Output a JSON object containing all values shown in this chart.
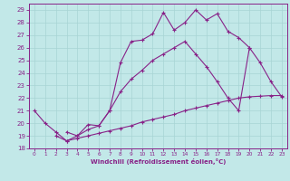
{
  "xlabel": "Windchill (Refroidissement éolien,°C)",
  "xlim": [
    -0.5,
    23.5
  ],
  "ylim": [
    18,
    29.5
  ],
  "yticks": [
    18,
    19,
    20,
    21,
    22,
    23,
    24,
    25,
    26,
    27,
    28,
    29
  ],
  "xticks": [
    0,
    1,
    2,
    3,
    4,
    5,
    6,
    7,
    8,
    9,
    10,
    11,
    12,
    13,
    14,
    15,
    16,
    17,
    18,
    19,
    20,
    21,
    22,
    23
  ],
  "bg_color": "#c2e8e8",
  "grid_color": "#a8d4d4",
  "line_color": "#882288",
  "series": [
    {
      "x": [
        0,
        1,
        2,
        3,
        4,
        5,
        6,
        7,
        8,
        9,
        10,
        11,
        12,
        13,
        14,
        15,
        16,
        17,
        18,
        19,
        20
      ],
      "y": [
        21.0,
        20.0,
        19.3,
        18.6,
        19.0,
        19.9,
        19.8,
        21.0,
        24.8,
        26.5,
        26.6,
        27.1,
        28.8,
        27.4,
        28.0,
        29.0,
        28.2,
        28.7,
        27.3,
        26.8,
        26.0
      ]
    },
    {
      "x": [
        3,
        4,
        5,
        6,
        7,
        8,
        9,
        10,
        11,
        12,
        13,
        14,
        15,
        16,
        17,
        18,
        19,
        20,
        21,
        22,
        23
      ],
      "y": [
        19.3,
        19.0,
        19.5,
        19.8,
        21.0,
        22.5,
        23.5,
        24.2,
        25.0,
        25.5,
        26.0,
        26.5,
        25.5,
        24.5,
        23.3,
        22.0,
        21.0,
        26.0,
        24.8,
        23.3,
        22.1
      ]
    },
    {
      "x": [
        2,
        3,
        4,
        5,
        6,
        7,
        8,
        9,
        10,
        11,
        12,
        13,
        14,
        15,
        16,
        17,
        18,
        19,
        20,
        21,
        22,
        23
      ],
      "y": [
        19.0,
        18.6,
        18.8,
        19.0,
        19.2,
        19.4,
        19.6,
        19.8,
        20.1,
        20.3,
        20.5,
        20.7,
        21.0,
        21.2,
        21.4,
        21.6,
        21.8,
        22.0,
        22.1,
        22.15,
        22.2,
        22.2
      ]
    }
  ]
}
